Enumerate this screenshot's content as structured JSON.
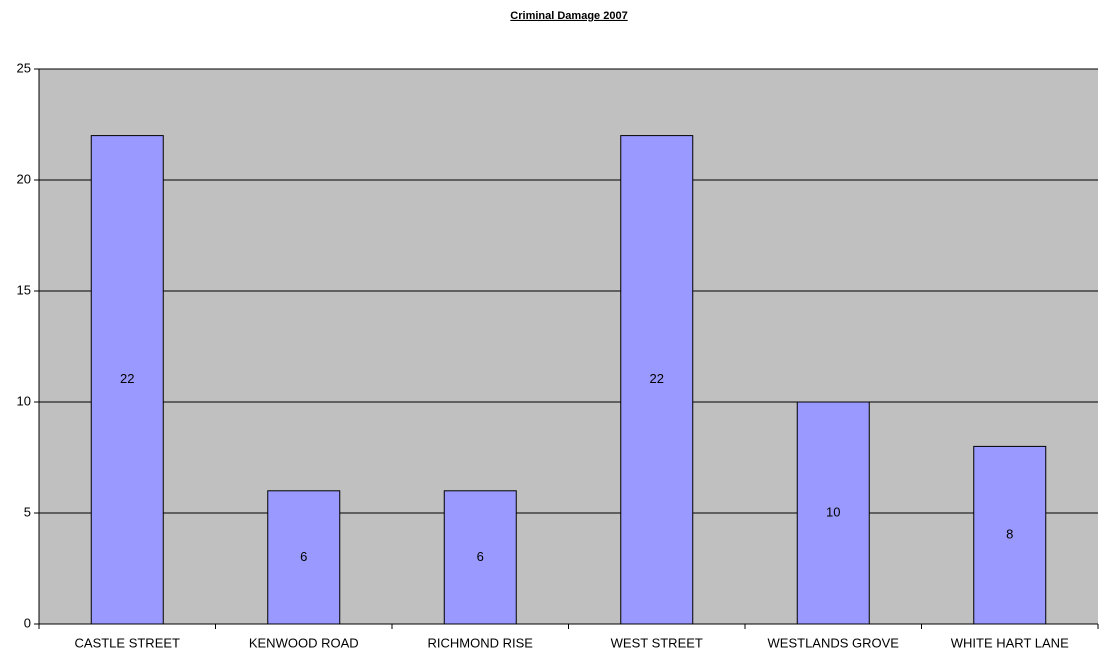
{
  "chart_data": {
    "type": "bar",
    "title": "Criminal Damage 2007",
    "categories": [
      "CASTLE STREET",
      "KENWOOD ROAD",
      "RICHMOND RISE",
      "WEST STREET",
      "WESTLANDS GROVE",
      "WHITE HART LANE"
    ],
    "values": [
      22,
      6,
      6,
      22,
      10,
      8
    ],
    "color": "#9999ff",
    "ylim": [
      0,
      25
    ],
    "yticks": [
      0,
      5,
      10,
      15,
      20,
      25
    ],
    "grid": true
  }
}
